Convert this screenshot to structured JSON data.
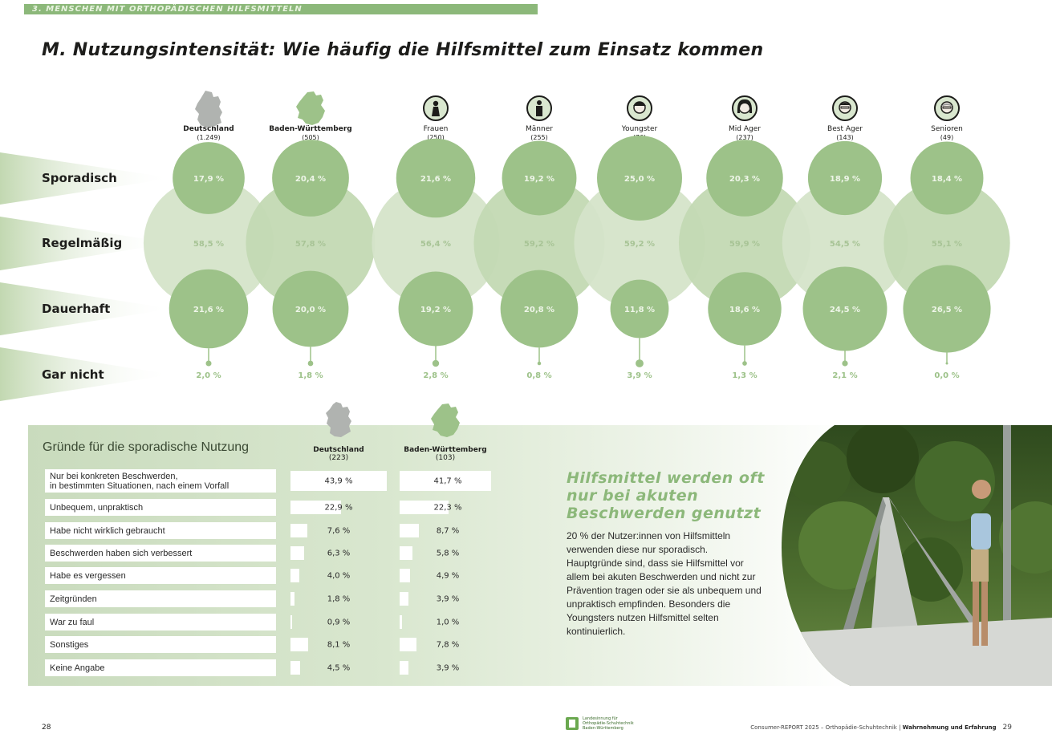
{
  "section_label": "3. MENSCHEN MIT ORTHOPÄDISCHEN HILFSMITTELN",
  "title": "M. Nutzungsintensität: Wie häufig die Hilfsmittel zum Einsatz kommen",
  "colors": {
    "accent": "#8cb87a",
    "light": "#d5e4c9",
    "mid": "#c3d9b3",
    "dark": "#9dc289",
    "text": "#1d1d1b"
  },
  "chart_data": [
    {
      "type": "bubble-matrix",
      "categories": [
        "Sporadisch",
        "Regelmäßig",
        "Dauerhaft",
        "Gar nicht"
      ],
      "groups": [
        {
          "name": "Deutschland",
          "n": "(1.249)",
          "icon": "germany-map-icon",
          "values": [
            17.9,
            58.5,
            21.6,
            2.0
          ],
          "labels": [
            "17,9 %",
            "58,5 %",
            "21,6 %",
            "2,0 %"
          ]
        },
        {
          "name": "Baden-Württemberg",
          "n": "(505)",
          "icon": "bw-map-icon",
          "values": [
            20.4,
            57.8,
            20.0,
            1.8
          ],
          "labels": [
            "20,4 %",
            "57,8 %",
            "20,0 %",
            "1,8 %"
          ]
        },
        {
          "name": "Frauen",
          "n": "(250)",
          "icon": "woman-icon",
          "values": [
            21.6,
            56.4,
            19.2,
            2.8
          ],
          "labels": [
            "21,6 %",
            "56,4 %",
            "19,2 %",
            "2,8 %"
          ]
        },
        {
          "name": "Männer",
          "n": "(255)",
          "icon": "man-icon",
          "values": [
            19.2,
            59.2,
            20.8,
            0.8
          ],
          "labels": [
            "19,2 %",
            "59,2 %",
            "20,8 %",
            "0,8 %"
          ]
        },
        {
          "name": "Youngster",
          "n": "(76)",
          "icon": "youngster-avatar-icon",
          "values": [
            25.0,
            59.2,
            11.8,
            3.9
          ],
          "labels": [
            "25,0 %",
            "59,2 %",
            "11,8 %",
            "3,9 %"
          ]
        },
        {
          "name": "Mid Ager",
          "n": "(237)",
          "icon": "mid-ager-avatar-icon",
          "values": [
            20.3,
            59.9,
            18.6,
            1.3
          ],
          "labels": [
            "20,3 %",
            "59,9 %",
            "18,6 %",
            "1,3 %"
          ]
        },
        {
          "name": "Best Ager",
          "n": "(143)",
          "icon": "best-ager-avatar-icon",
          "values": [
            18.9,
            54.5,
            24.5,
            2.1
          ],
          "labels": [
            "18,9 %",
            "54,5 %",
            "24,5 %",
            "2,1 %"
          ]
        },
        {
          "name": "Senioren",
          "n": "(49)",
          "icon": "senior-avatar-icon",
          "values": [
            18.4,
            55.1,
            26.5,
            0.0
          ],
          "labels": [
            "18,4 %",
            "55,1 %",
            "26,5 %",
            "0,0 %"
          ]
        }
      ]
    },
    {
      "type": "bar",
      "title": "Gründe für die sporadische Nutzung",
      "series": [
        {
          "name": "Deutschland",
          "n": "(223)",
          "values": [
            43.9,
            22.9,
            7.6,
            6.3,
            4.0,
            1.8,
            0.9,
            8.1,
            4.5
          ],
          "labels": [
            "43,9 %",
            "22,9 %",
            "7,6 %",
            "6,3 %",
            "4,0 %",
            "1,8 %",
            "0,9 %",
            "8,1 %",
            "4,5 %"
          ]
        },
        {
          "name": "Baden-Württemberg",
          "n": "(103)",
          "values": [
            41.7,
            22.3,
            8.7,
            5.8,
            4.9,
            3.9,
            1.0,
            7.8,
            3.9
          ],
          "labels": [
            "41,7 %",
            "22,3 %",
            "8,7 %",
            "5,8 %",
            "4,9 %",
            "3,9 %",
            "1,0 %",
            "7,8 %",
            "3,9 %"
          ]
        }
      ],
      "categories": [
        "Nur bei konkreten Beschwerden,\nin bestimmten Situationen, nach einem Vorfall",
        "Unbequem, unpraktisch",
        "Habe nicht wirklich gebraucht",
        "Beschwerden haben sich verbessert",
        "Habe es vergessen",
        "Zeitgründen",
        "War zu faul",
        "Sonstiges",
        "Keine Angabe"
      ],
      "xlim": [
        0,
        43.9
      ]
    }
  ],
  "callout": {
    "headline": "Hilfsmittel werden oft nur bei akuten Beschwerden genutzt",
    "body": "20 % der Nutzer:innen von Hilfsmitteln verwenden diese nur sporadisch. Hauptgründe sind, dass sie Hilfsmittel vor allem bei akuten Beschwerden und nicht zur Prävention tragen oder sie als unbequem und unpraktisch empfinden. Besonders die Youngsters nutzen Hilfsmittel selten kontinuierlich."
  },
  "footer": {
    "page_left": "28",
    "logo_text": [
      "Landesinnung für",
      "Orthopädie-Schuhtechnik",
      "Baden-Württemberg"
    ],
    "report": "Consumer-REPORT 2025 – Orthopädie-Schuhtechnik | ",
    "report_bold": "Wahrnehmung und Erfahrung",
    "page_right": "29"
  }
}
